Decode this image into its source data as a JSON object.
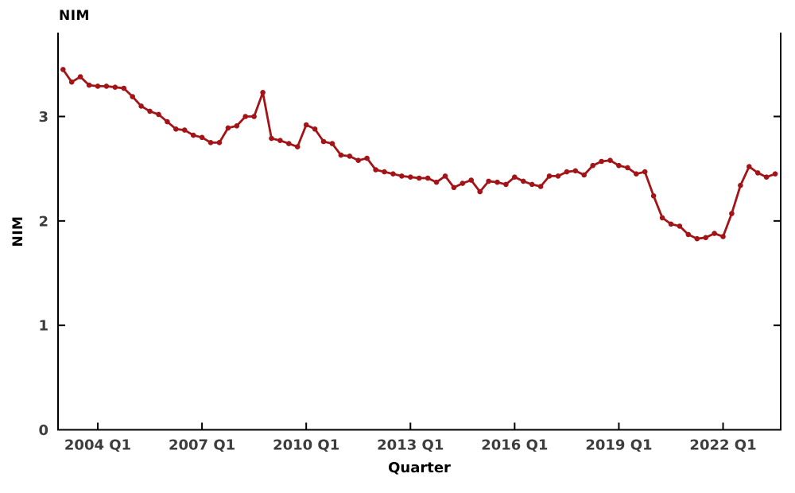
{
  "chart_data": {
    "type": "line",
    "title": "NIM",
    "xlabel": "Quarter",
    "ylabel": "NIM",
    "ylim": [
      0,
      3.8
    ],
    "yticks": [
      0,
      1,
      2,
      3
    ],
    "xticks": [
      "2004 Q1",
      "2007 Q1",
      "2010 Q1",
      "2013 Q1",
      "2016 Q1",
      "2019 Q1",
      "2022 Q1"
    ],
    "grid": false,
    "legend": "none",
    "marker": "circle",
    "x": [
      "2003 Q1",
      "2003 Q2",
      "2003 Q3",
      "2003 Q4",
      "2004 Q1",
      "2004 Q2",
      "2004 Q3",
      "2004 Q4",
      "2005 Q1",
      "2005 Q2",
      "2005 Q3",
      "2005 Q4",
      "2006 Q1",
      "2006 Q2",
      "2006 Q3",
      "2006 Q4",
      "2007 Q1",
      "2007 Q2",
      "2007 Q3",
      "2007 Q4",
      "2008 Q1",
      "2008 Q2",
      "2008 Q3",
      "2008 Q4",
      "2009 Q1",
      "2009 Q2",
      "2009 Q3",
      "2009 Q4",
      "2010 Q1",
      "2010 Q2",
      "2010 Q3",
      "2010 Q4",
      "2011 Q1",
      "2011 Q2",
      "2011 Q3",
      "2011 Q4",
      "2012 Q1",
      "2012 Q2",
      "2012 Q3",
      "2012 Q4",
      "2013 Q1",
      "2013 Q2",
      "2013 Q3",
      "2013 Q4",
      "2014 Q1",
      "2014 Q2",
      "2014 Q3",
      "2014 Q4",
      "2015 Q1",
      "2015 Q2",
      "2015 Q3",
      "2015 Q4",
      "2016 Q1",
      "2016 Q2",
      "2016 Q3",
      "2016 Q4",
      "2017 Q1",
      "2017 Q2",
      "2017 Q3",
      "2017 Q4",
      "2018 Q1",
      "2018 Q2",
      "2018 Q3",
      "2018 Q4",
      "2019 Q1",
      "2019 Q2",
      "2019 Q3",
      "2019 Q4",
      "2020 Q1",
      "2020 Q2",
      "2020 Q3",
      "2020 Q4",
      "2021 Q1",
      "2021 Q2",
      "2021 Q3",
      "2021 Q4",
      "2022 Q1",
      "2022 Q2",
      "2022 Q3",
      "2022 Q4",
      "2023 Q1",
      "2023 Q2",
      "2023 Q3"
    ],
    "series": [
      {
        "name": "NIM",
        "values": [
          3.45,
          3.33,
          3.38,
          3.3,
          3.29,
          3.29,
          3.28,
          3.27,
          3.19,
          3.1,
          3.05,
          3.02,
          2.95,
          2.88,
          2.87,
          2.82,
          2.8,
          2.75,
          2.75,
          2.89,
          2.91,
          3.0,
          3.0,
          3.23,
          2.79,
          2.77,
          2.74,
          2.71,
          2.92,
          2.88,
          2.76,
          2.74,
          2.63,
          2.62,
          2.58,
          2.6,
          2.49,
          2.47,
          2.45,
          2.43,
          2.42,
          2.41,
          2.41,
          2.37,
          2.43,
          2.32,
          2.36,
          2.39,
          2.28,
          2.38,
          2.37,
          2.35,
          2.42,
          2.38,
          2.35,
          2.33,
          2.43,
          2.43,
          2.47,
          2.48,
          2.44,
          2.53,
          2.57,
          2.58,
          2.53,
          2.51,
          2.45,
          2.47,
          2.24,
          2.03,
          1.97,
          1.95,
          1.87,
          1.83,
          1.84,
          1.88,
          1.85,
          2.07,
          2.34,
          2.52,
          2.46,
          2.42,
          2.45
        ]
      }
    ]
  },
  "colors": {
    "line": "#a31418",
    "marker": "#a31418",
    "axis": "#000000",
    "tick_label": "#3d3d3d",
    "background": "#ffffff"
  }
}
